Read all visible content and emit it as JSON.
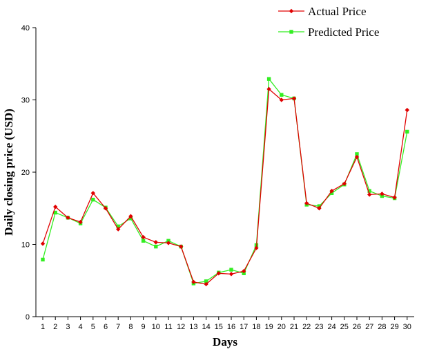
{
  "chart_data": {
    "type": "line",
    "xlabel": "Days",
    "ylabel": "Daily closing price (USD)",
    "x": [
      1,
      2,
      3,
      4,
      5,
      6,
      7,
      8,
      9,
      10,
      11,
      12,
      13,
      14,
      15,
      16,
      17,
      18,
      19,
      20,
      21,
      22,
      23,
      24,
      25,
      26,
      27,
      28,
      29,
      30
    ],
    "ylim": [
      0,
      40
    ],
    "yticks": [
      0,
      10,
      20,
      30,
      40
    ],
    "legend_position": "top-right",
    "grid": false,
    "series": [
      {
        "name": "Actual Price",
        "color": "#e00000",
        "marker": "diamond",
        "values": [
          10.1,
          15.2,
          13.7,
          13.1,
          17.1,
          15.0,
          12.1,
          13.9,
          11.0,
          10.3,
          10.2,
          9.7,
          4.8,
          4.5,
          6.0,
          5.9,
          6.3,
          9.5,
          31.5,
          30.0,
          30.2,
          15.7,
          15.0,
          17.4,
          18.4,
          22.1,
          16.9,
          17.0,
          16.5,
          28.6
        ]
      },
      {
        "name": "Predicted Price",
        "color": "#33ee22",
        "marker": "square",
        "values": [
          7.9,
          14.4,
          13.7,
          12.9,
          16.2,
          15.1,
          12.5,
          13.6,
          10.5,
          9.7,
          10.5,
          9.7,
          4.6,
          4.9,
          6.1,
          6.5,
          6.0,
          9.9,
          32.9,
          30.7,
          30.2,
          15.5,
          15.3,
          17.1,
          18.3,
          22.5,
          17.4,
          16.7,
          16.4,
          25.6
        ]
      }
    ]
  }
}
